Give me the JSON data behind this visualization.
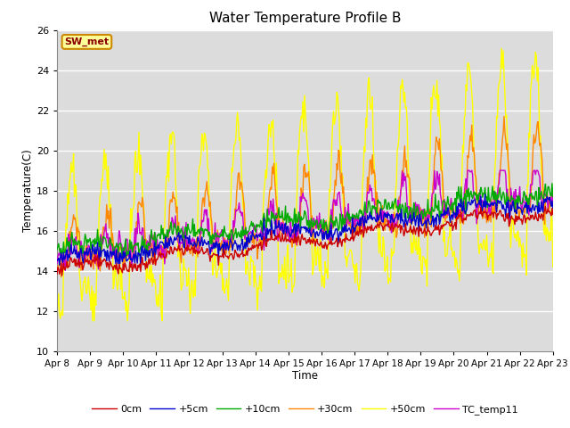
{
  "title": "Water Temperature Profile B",
  "xlabel": "Time",
  "ylabel": "Temperature(C)",
  "ylim": [
    10,
    26
  ],
  "yticks": [
    10,
    12,
    14,
    16,
    18,
    20,
    22,
    24,
    26
  ],
  "bg_color": "#dcdcdc",
  "annotation_text": "SW_met",
  "annotation_color": "#8b0000",
  "annotation_bg": "#ffff99",
  "annotation_border": "#cc8800",
  "series_colors": {
    "0cm": "#cc0000",
    "+5cm": "#0000cc",
    "+10cm": "#00aa00",
    "+30cm": "#ff8800",
    "+50cm": "#ffff00",
    "TC_temp11": "#cc00cc"
  },
  "x_tick_labels": [
    "Apr 8",
    "Apr 9",
    "Apr 10",
    "Apr 11",
    "Apr 12",
    "Apr 13",
    "Apr 14",
    "Apr 15",
    "Apr 16",
    "Apr 17",
    "Apr 18",
    "Apr 19",
    "Apr 20",
    "Apr 21",
    "Apr 22",
    "Apr 23"
  ]
}
